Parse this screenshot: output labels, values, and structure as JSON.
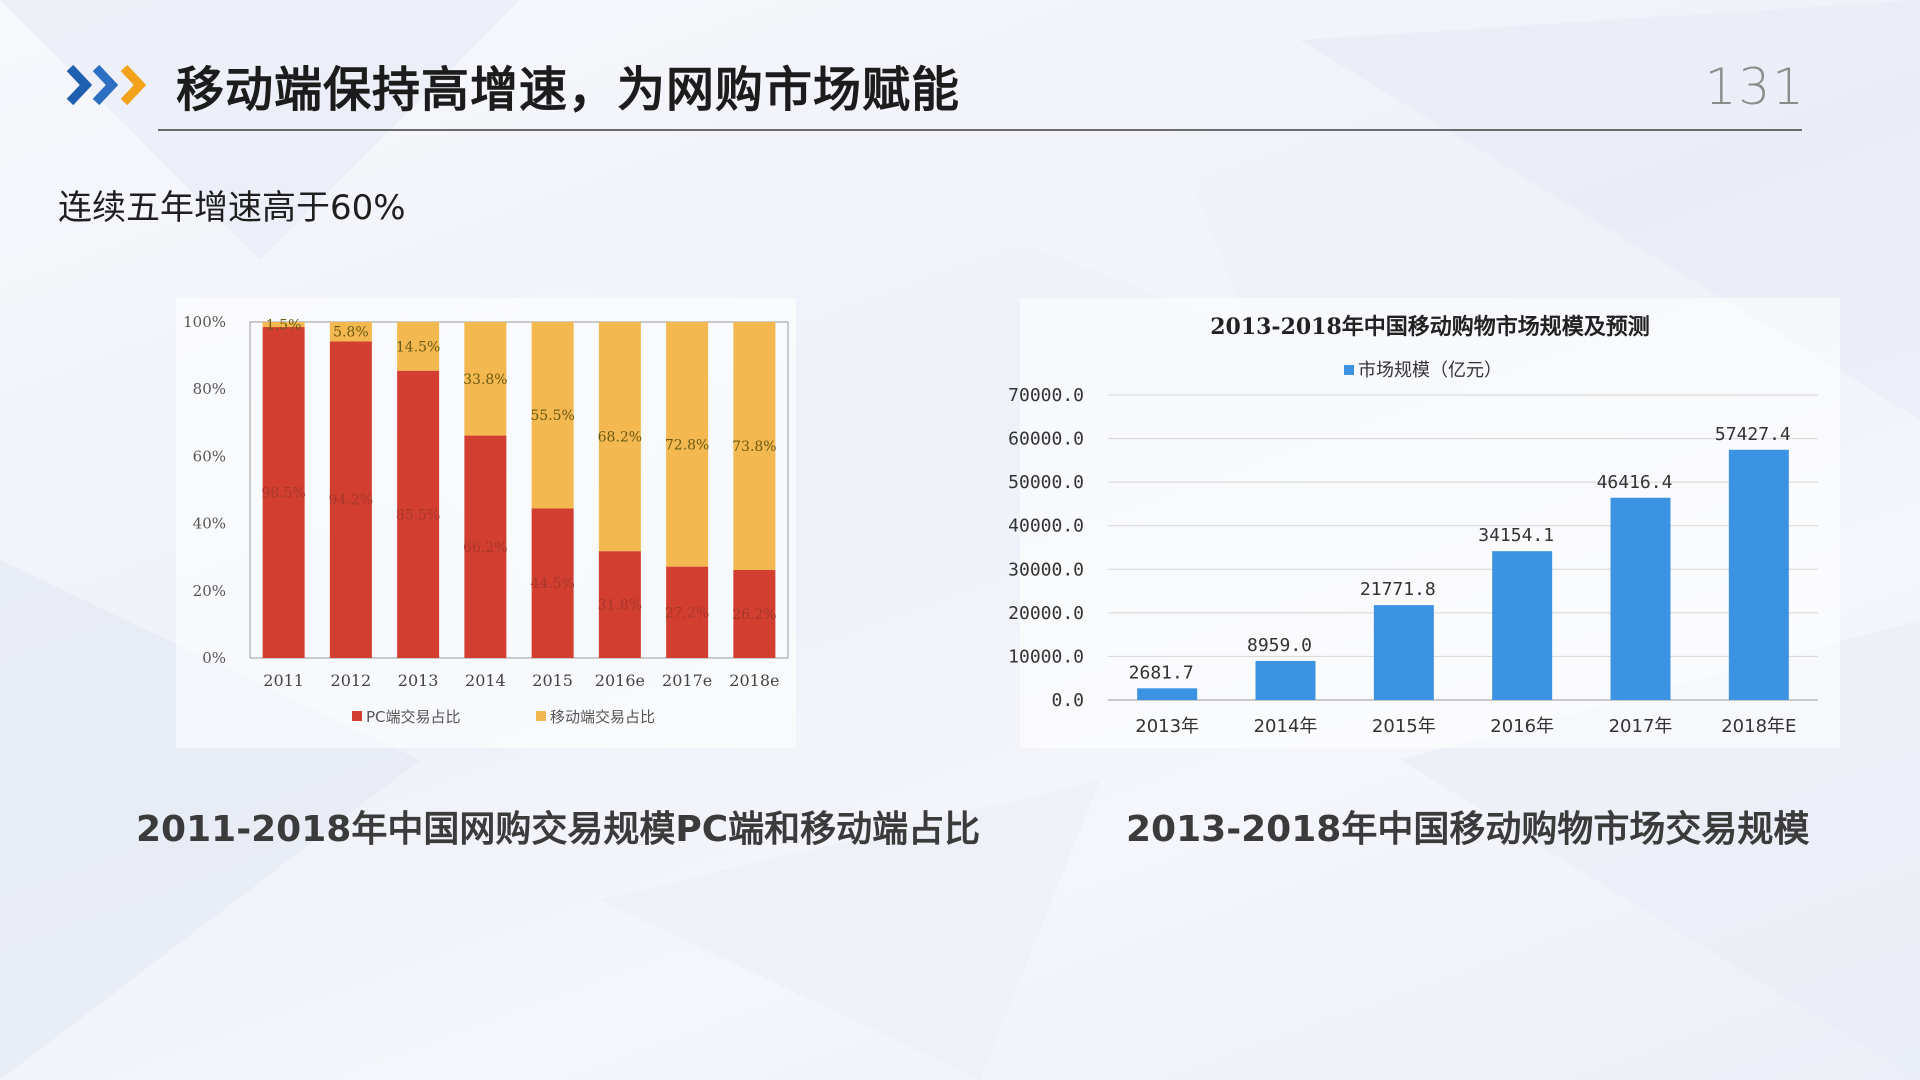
{
  "header": {
    "title": "移动端保持高增速，为网购市场赋能",
    "page_number": "131"
  },
  "subtitle": "连续五年增速高于60%",
  "captions": {
    "left": "2011-2018年中国网购交易规模PC端和移动端占比",
    "right": "2013-2018年中国移动购物市场交易规模"
  },
  "colors": {
    "accent_blue": "#1f5fb0",
    "accent_orange": "#f3a21c",
    "pc_red": "#d23f31",
    "mobile_yellow": "#f3b84f",
    "bar_blue": "#3c93e2"
  },
  "chart_data": [
    {
      "type": "bar",
      "stacked": true,
      "categories": [
        "2011",
        "2012",
        "2013",
        "2014",
        "2015",
        "2016e",
        "2017e",
        "2018e"
      ],
      "series": [
        {
          "name": "PC端交易占比",
          "values": [
            98.5,
            94.2,
            85.5,
            66.2,
            44.5,
            31.8,
            27.2,
            26.2
          ],
          "labels": [
            "98.5%",
            "94.2%",
            "85.5%",
            "66.2%",
            "44.5%",
            "31.8%",
            "27.2%",
            "26.2%"
          ],
          "color": "#d23f31"
        },
        {
          "name": "移动端交易占比",
          "values": [
            1.5,
            5.8,
            14.5,
            33.8,
            55.5,
            68.2,
            72.8,
            73.8
          ],
          "labels": [
            "1.5%",
            "5.8%",
            "14.5%",
            "33.8%",
            "55.5%",
            "68.2%",
            "72.8%",
            "73.8%"
          ],
          "color": "#f3b84f"
        }
      ],
      "ylim": [
        0,
        100
      ],
      "yticks": [
        "0%",
        "20%",
        "40%",
        "60%",
        "80%",
        "100%"
      ],
      "legend_position": "bottom"
    },
    {
      "type": "bar",
      "title": "2013-2018年中国移动购物市场规模及预测",
      "categories": [
        "2013年",
        "2014年",
        "2015年",
        "2016年",
        "2017年",
        "2018年E"
      ],
      "series": [
        {
          "name": "市场规模（亿元）",
          "values": [
            2681.7,
            8959.0,
            21771.8,
            34154.1,
            46416.4,
            57427.4
          ],
          "labels": [
            "2681.7",
            "8959.0",
            "21771.8",
            "34154.1",
            "46416.4",
            "57427.4"
          ],
          "color": "#3c93e2"
        }
      ],
      "ylim": [
        0,
        70000
      ],
      "yticks": [
        "0.0",
        "10000.0",
        "20000.0",
        "30000.0",
        "40000.0",
        "50000.0",
        "60000.0",
        "70000.0"
      ],
      "grid": true,
      "legend_position": "top"
    }
  ]
}
